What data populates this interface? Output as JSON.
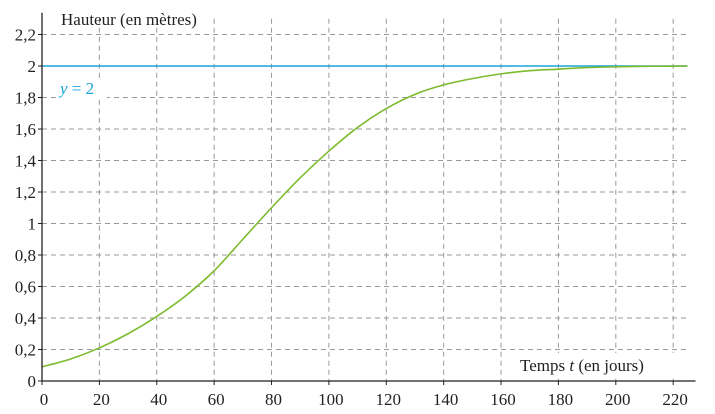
{
  "chart_data": {
    "type": "line",
    "xlabel_prefix": "Temps ",
    "xlabel_var": "t",
    "xlabel_suffix": " (en jours)",
    "ylabel": "Hauteur (en mètres)",
    "xlim": [
      0,
      225
    ],
    "ylim": [
      0,
      2.3
    ],
    "x_ticks": [
      0,
      20,
      40,
      60,
      80,
      100,
      120,
      140,
      160,
      180,
      200,
      220
    ],
    "x_tick_labels": [
      "0",
      "20",
      "40",
      "60",
      "80",
      "100",
      "120",
      "140",
      "160",
      "180",
      "200",
      "220"
    ],
    "y_ticks": [
      0,
      0.2,
      0.4,
      0.6,
      0.8,
      1,
      1.2,
      1.4,
      1.6,
      1.8,
      2,
      2.2
    ],
    "y_tick_labels": [
      "0",
      "0,2",
      "0,4",
      "0,6",
      "0,8",
      "1",
      "1,2",
      "1,4",
      "1,6",
      "1,8",
      "2",
      "2,2"
    ],
    "grid": true,
    "asymptote": {
      "y": 2,
      "label_var": "y",
      "label_rest": " = 2",
      "color": "#1aa3d9"
    },
    "series": [
      {
        "color": "#7dbb2e",
        "x": [
          0,
          10,
          20,
          30,
          40,
          50,
          60,
          70,
          80,
          90,
          100,
          110,
          120,
          130,
          140,
          150,
          160,
          170,
          180,
          190,
          200,
          210,
          220,
          225
        ],
        "y": [
          0.09,
          0.14,
          0.21,
          0.3,
          0.41,
          0.54,
          0.7,
          0.9,
          1.1,
          1.29,
          1.46,
          1.61,
          1.73,
          1.82,
          1.88,
          1.92,
          1.95,
          1.97,
          1.98,
          1.99,
          1.995,
          1.998,
          1.999,
          2.0
        ]
      }
    ]
  }
}
